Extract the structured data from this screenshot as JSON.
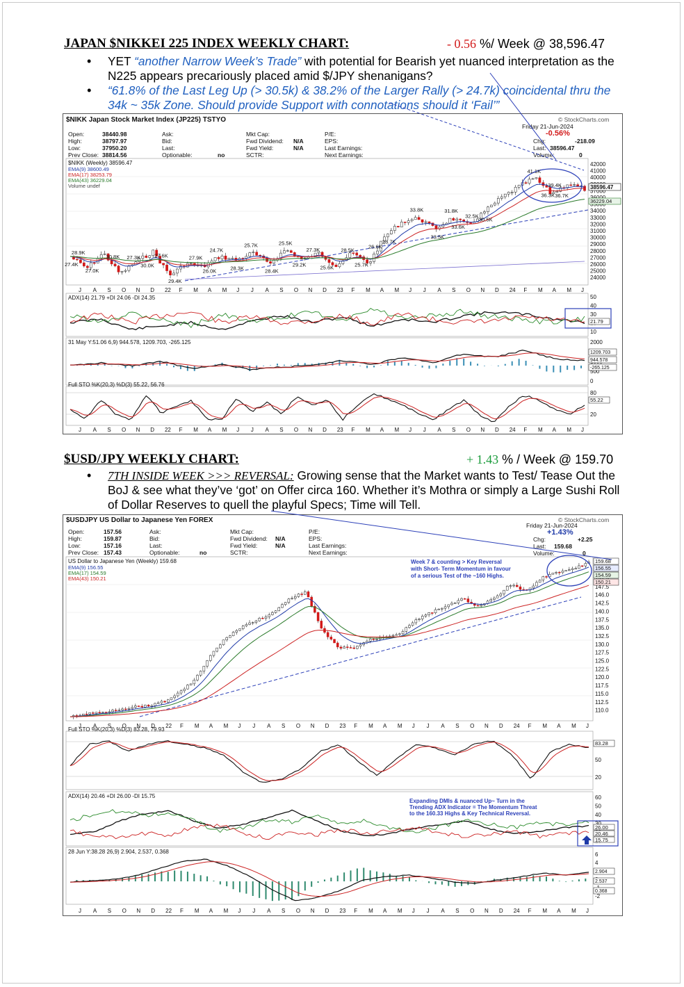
{
  "nikkei_section": {
    "heading": "JAPAN $NIKKEI 225 INDEX WEEKLY CHART:",
    "change": "- 0.56",
    "suffix": " %/ Week @ 38,596.47",
    "bullet1": {
      "lead": "YET ",
      "quote": "“another Narrow Week’s Trade”",
      "rest": " with potential for Bearish yet nuanced interpretation as the N225 appears precariously placed amid $/JPY shenanigans?"
    },
    "bullet2": "“61.8% of the Last Leg Up (> 30.5k) & 38.2% of the Larger Rally (> 24.7k) coincidental thru the 34k ~ 35k Zone. Should provide Support with connotations should it ‘Fail’”"
  },
  "nikkei_chart": {
    "title": "$NIKK Japan Stock Market Index (JP225) TSTYO",
    "source": "© StockCharts.com",
    "date": "Friday  21-Jun-2024",
    "change_pct": "-0.56%",
    "chg": "-218.09",
    "last": "38596.47",
    "volume": "0",
    "quote": {
      "open": "38440.98",
      "high": "38797.97",
      "low": "37950.20",
      "prev_close": "38814.56",
      "fwd_dividend": "N/A",
      "fwd_yield": "N/A",
      "optionable": "no"
    },
    "legend": {
      "price": "$NIKK (Weekly) 38596.47",
      "ema9": "EMA(9) 38600.49",
      "ema17": "EMA(17) 38253.79",
      "ema43": "EMA(43) 36229.04",
      "volume": "Volume undef"
    },
    "price_tag": "38596.47",
    "ema43_tag": "36229.04",
    "adx_legend": "ADX(14) 21.79  +DI 24.06  -DI 24.35",
    "adx_tag": "21.79",
    "macd_legend": "31 May Y:51.06 6,9) 944.578, 1209.703, -265.125",
    "macd_tags": [
      "1209.703",
      "944.578",
      "-265.125"
    ],
    "sto_legend": "Full STO %K(20,3) %D(3) 55.22, 56.76",
    "sto_tag": "55.22",
    "price_labels": [
      "28.9K",
      "27.4K",
      "30.8K",
      "27.0K",
      "27.3K",
      "30.0K",
      "27.6K",
      "29.4K",
      "27.9K",
      "26.0K",
      "24.7K",
      "28.3K",
      "25.7K",
      "28.4K",
      "25.5K",
      "29.2K",
      "27.3K",
      "25.6K",
      "28.5K",
      "25.7K",
      "26.6K",
      "28.7K",
      "33.8K",
      "33.5K",
      "31.8K",
      "33.6K",
      "32.5K",
      "30.5K",
      "41.1K",
      "36.3K",
      "39.4K",
      "36.7K"
    ],
    "y_ticks": [
      "42000",
      "41000",
      "40000",
      "39000",
      "37000",
      "36000",
      "35000",
      "34000",
      "33000",
      "32000",
      "31000",
      "30000",
      "29000",
      "28000",
      "27000",
      "26000",
      "25000",
      "24000"
    ],
    "adx_ticks": [
      "50",
      "40",
      "30",
      "20",
      "10"
    ],
    "macd_ticks": [
      "2000",
      "1500",
      "1000",
      "500",
      "0"
    ],
    "sto_ticks": [
      "80",
      "20"
    ],
    "x_ticks": [
      "J",
      "A",
      "S",
      "O",
      "N",
      "D",
      "22",
      "F",
      "M",
      "A",
      "M",
      "J",
      "J",
      "A",
      "S",
      "O",
      "N",
      "D",
      "23",
      "F",
      "M",
      "A",
      "M",
      "J",
      "J",
      "A",
      "S",
      "O",
      "N",
      "D",
      "24",
      "F",
      "M",
      "A",
      "M",
      "J"
    ]
  },
  "usdjpy_section": {
    "heading": "$USD/JPY WEEKLY CHART:",
    "change": "+ 1.43",
    "suffix": " % / Week @ 159.70",
    "bullet_head": "7TH INSIDE WEEK >>> REVERSAL:",
    "bullet_text": " Growing sense that the Market wants to Test/ Tease Out the BoJ & see what they’ve ‘got’ on Offer circa 160. Whether it’s Mothra or simply a Large Sushi Roll of Dollar Reserves to quell the playful Specs; Time will Tell."
  },
  "usdjpy_chart": {
    "title": "$USDJPY US Dollar to Japanese Yen FOREX",
    "source": "© StockCharts.com",
    "date": "Friday  21-Jun-2024",
    "change_pct": "+1.43%",
    "chg": "+2.25",
    "last": "159.68",
    "volume": "0",
    "quote": {
      "open": "157.56",
      "high": "159.87",
      "low": "157.16",
      "prev_close": "157.43",
      "fwd_dividend": "N/A",
      "fwd_yield": "N/A",
      "optionable": "no"
    },
    "legend": {
      "price": "US Dollar to Japanese Yen (Weekly) 159.68",
      "ema9": "EMA(9) 156.55",
      "ema17": "EMA(17) 154.59",
      "ema43": "EMA(43) 150.21"
    },
    "annotation1": [
      "Week 7 & counting > Key Reversal",
      "with Short- Term Momentum in favour",
      "of a serious Test of the ~160 Highs."
    ],
    "price_tags": [
      "159.68",
      "156.55",
      "154.59",
      "150.21"
    ],
    "y_ticks": [
      "152.5",
      "147.5",
      "146.0",
      "142.5",
      "140.0",
      "137.5",
      "135.0",
      "132.5",
      "130.0",
      "127.5",
      "125.0",
      "122.5",
      "120.0",
      "117.5",
      "115.0",
      "112.5",
      "110.0"
    ],
    "sto_legend": "Full STO %K(20,3) %D(3) 83.28, 79.93",
    "sto_tag": "83.28",
    "sto_ticks": [
      "80",
      "50",
      "20"
    ],
    "adx_legend": "ADX(14) 20.46  +DI 26.00  -DI 15.75",
    "annotation2": [
      "Expanding DMIs & nuanced Up~ Turn in the",
      "Trending ADX Indicator = The Momentum Threat",
      "to the 160.33 Highs & Key Technical Reversal."
    ],
    "adx_tags": [
      "26.00",
      "20.46",
      "15.75"
    ],
    "adx_ticks": [
      "60",
      "50",
      "40",
      "30",
      "20",
      "10"
    ],
    "macd_legend": "28 Jun Y:38.28 26,9) 2.904, 2.537, 0.368",
    "macd_tags": [
      "2.904",
      "2.537",
      "0.368"
    ],
    "macd_ticks": [
      "6",
      "4",
      "2",
      "0",
      "-1",
      "-2"
    ],
    "x_ticks": [
      "J",
      "A",
      "S",
      "O",
      "N",
      "D",
      "22",
      "F",
      "M",
      "A",
      "M",
      "J",
      "J",
      "A",
      "S",
      "O",
      "N",
      "D",
      "23",
      "F",
      "M",
      "A",
      "M",
      "J",
      "J",
      "A",
      "S",
      "O",
      "N",
      "D",
      "24",
      "F",
      "M",
      "A",
      "M",
      "J"
    ]
  }
}
